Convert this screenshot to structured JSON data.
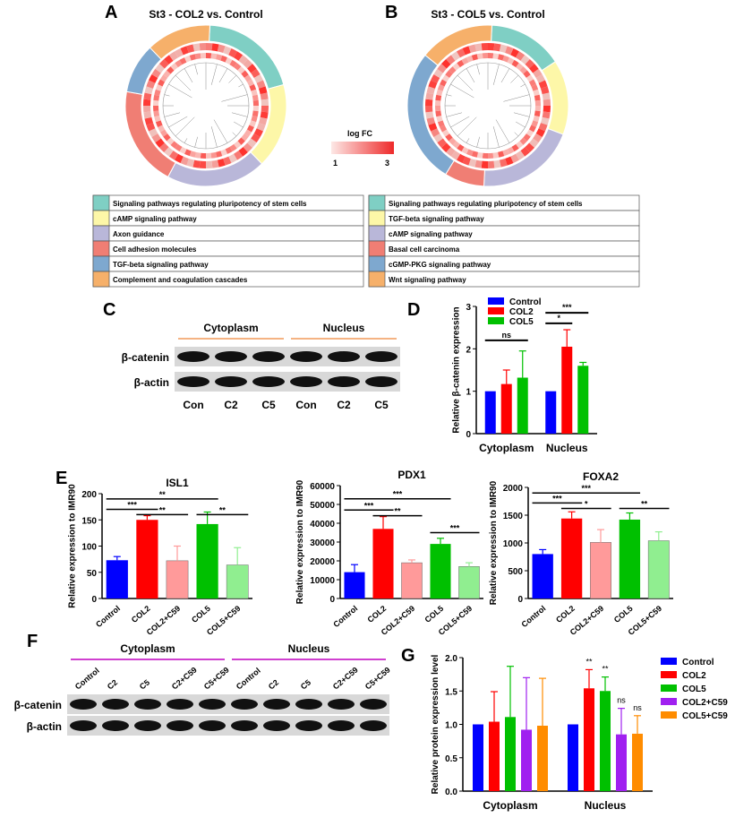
{
  "panels": {
    "a": "A",
    "b": "B",
    "c": "C",
    "d": "D",
    "e": "E",
    "f": "F",
    "g": "G"
  },
  "circos": [
    {
      "title": "St3 - COL2 vs. Control",
      "legend": [
        {
          "label": "Signaling pathways regulating pluripotency of stem cells",
          "color": "#7fcfc4"
        },
        {
          "label": "cAMP signaling pathway",
          "color": "#fdf7a8"
        },
        {
          "label": "Axon guidance",
          "color": "#b9b7d9"
        },
        {
          "label": "Cell adhesion molecules",
          "color": "#f07e74"
        },
        {
          "label": "TGF-beta signaling pathway",
          "color": "#7ea8cf"
        },
        {
          "label": "Complement and coagulation cascades",
          "color": "#f6b06a"
        }
      ],
      "ring_fractions": [
        0.2,
        0.17,
        0.2,
        0.2,
        0.1,
        0.13
      ]
    },
    {
      "title": "St3 - COL5 vs. Control",
      "legend": [
        {
          "label": "Signaling pathways regulating pluripotency of stem cells",
          "color": "#7fcfc4"
        },
        {
          "label": "TGF-beta signaling pathway",
          "color": "#fdf7a8"
        },
        {
          "label": "cAMP signaling pathway",
          "color": "#b9b7d9"
        },
        {
          "label": "Basal cell carcinoma",
          "color": "#f07e74"
        },
        {
          "label": "cGMP-PKG signaling pathway",
          "color": "#7ea8cf"
        },
        {
          "label": "Wnt signaling pathway",
          "color": "#f6b06a"
        }
      ],
      "ring_fractions": [
        0.15,
        0.15,
        0.2,
        0.08,
        0.27,
        0.15
      ]
    }
  ],
  "logfc": {
    "title": "log FC",
    "min": "1",
    "max": "3"
  },
  "blot_c": {
    "groups": [
      "Cytoplasm",
      "Nucleus"
    ],
    "rows": [
      "β-catenin",
      "β-actin"
    ],
    "lanes": [
      "Con",
      "C2",
      "C5",
      "Con",
      "C2",
      "C5"
    ]
  },
  "blot_f": {
    "groups": [
      "Cytoplasm",
      "Nucleus"
    ],
    "rows": [
      "β-catenin",
      "β-actin"
    ],
    "lanes": [
      "Control",
      "C2",
      "C5",
      "C2+C59",
      "C5+C59",
      "Control",
      "C2",
      "C5",
      "C2+C59",
      "C5+C59"
    ]
  },
  "colors": {
    "Control": "#0000ff",
    "COL2": "#ff0000",
    "COL5": "#00c000",
    "COL2+C59": "#a020f0",
    "COL5+C59": "#ff8c00",
    "COL2+C59_e": "#ff9a9a",
    "COL5+C59_e": "#90ee90"
  },
  "chart_data": [
    {
      "id": "D",
      "type": "bar",
      "categories": [
        "Cytoplasm",
        "Nucleus"
      ],
      "ylabel": "Relative β-catenin expression",
      "ylim": [
        0,
        3
      ],
      "yticks": [
        "0",
        "1",
        "2",
        "3"
      ],
      "legend": "top-left",
      "series": [
        {
          "name": "Control",
          "values": [
            1,
            1
          ],
          "err": [
            0,
            0
          ]
        },
        {
          "name": "COL2",
          "values": [
            1.17,
            2.05
          ],
          "err": [
            0.33,
            0.4
          ]
        },
        {
          "name": "COL5",
          "values": [
            1.32,
            1.6
          ],
          "err": [
            0.63,
            0.08
          ]
        }
      ],
      "annotations": [
        {
          "text": "ns",
          "group": 0,
          "from": 0,
          "to": 2,
          "y": 2.2
        },
        {
          "text": "*",
          "group": 1,
          "from": 0,
          "to": 1,
          "y": 2.6
        },
        {
          "text": "***",
          "group": 1,
          "from": 0,
          "to": 2,
          "y": 2.85
        }
      ]
    },
    {
      "id": "E1",
      "type": "bar",
      "title": "ISL1",
      "ylabel": "Relative expression to IMR90",
      "ylim": [
        0,
        200
      ],
      "yticks": [
        "0",
        "50",
        "100",
        "150",
        "200"
      ],
      "categories": [
        "Control",
        "COL2",
        "COL2+C59",
        "COL5",
        "COL5+C59"
      ],
      "values": [
        73,
        150,
        72,
        142,
        64
      ],
      "err": [
        7,
        8,
        28,
        23,
        33
      ],
      "annotations": [
        {
          "text": "***",
          "from": 0,
          "to": 1,
          "y": 170
        },
        {
          "text": "**",
          "from": 1,
          "to": 2,
          "y": 160
        },
        {
          "text": "**",
          "from": 0,
          "to": 3,
          "y": 190
        },
        {
          "text": "**",
          "from": 3,
          "to": 4,
          "y": 160
        }
      ]
    },
    {
      "id": "E2",
      "type": "bar",
      "title": "PDX1",
      "ylabel": "Relative expression to IMR90",
      "ylim": [
        0,
        60000
      ],
      "yticks": [
        "0",
        "10000",
        "20000",
        "30000",
        "40000",
        "50000",
        "60000"
      ],
      "categories": [
        "Control",
        "COL2",
        "COL2+C59",
        "COL5",
        "COL5+C59"
      ],
      "values": [
        14000,
        37000,
        19000,
        29000,
        17000
      ],
      "err": [
        4000,
        6500,
        1500,
        3000,
        2000
      ],
      "annotations": [
        {
          "text": "***",
          "from": 0,
          "to": 1,
          "y": 47000
        },
        {
          "text": "**",
          "from": 1,
          "to": 2,
          "y": 44000
        },
        {
          "text": "***",
          "from": 0,
          "to": 3,
          "y": 53000
        },
        {
          "text": "***",
          "from": 3,
          "to": 4,
          "y": 35000
        }
      ]
    },
    {
      "id": "E3",
      "type": "bar",
      "title": "FOXA2",
      "ylabel": "Relative expression to IMR90",
      "ylim": [
        0,
        2000
      ],
      "yticks": [
        "0",
        "500",
        "1000",
        "1500",
        "2000"
      ],
      "categories": [
        "Control",
        "COL2",
        "COL2+C59",
        "COL5",
        "COL5+C59"
      ],
      "values": [
        800,
        1440,
        1010,
        1420,
        1040
      ],
      "err": [
        80,
        120,
        230,
        120,
        160
      ],
      "annotations": [
        {
          "text": "***",
          "from": 0,
          "to": 1,
          "y": 1720
        },
        {
          "text": "*",
          "from": 1,
          "to": 2,
          "y": 1620
        },
        {
          "text": "***",
          "from": 0,
          "to": 3,
          "y": 1900
        },
        {
          "text": "**",
          "from": 3,
          "to": 4,
          "y": 1620
        }
      ]
    },
    {
      "id": "G",
      "type": "bar",
      "categories": [
        "Cytoplasm",
        "Nucleus"
      ],
      "ylabel": "Relative protein expression level",
      "ylim": [
        0,
        2
      ],
      "yticks": [
        "0.0",
        "0.5",
        "1.0",
        "1.5",
        "2.0"
      ],
      "legend": "right",
      "series": [
        {
          "name": "Control",
          "values": [
            1,
            1
          ],
          "err": [
            0,
            0
          ]
        },
        {
          "name": "COL2",
          "values": [
            1.04,
            1.54
          ],
          "err": [
            0.45,
            0.28
          ]
        },
        {
          "name": "COL5",
          "values": [
            1.11,
            1.5
          ],
          "err": [
            0.76,
            0.21
          ]
        },
        {
          "name": "COL2+C59",
          "values": [
            0.92,
            0.85
          ],
          "err": [
            0.78,
            0.39
          ]
        },
        {
          "name": "COL5+C59",
          "values": [
            0.98,
            0.86
          ],
          "err": [
            0.71,
            0.27
          ]
        }
      ],
      "marks": [
        {
          "text": "**",
          "group": 1,
          "series": 1
        },
        {
          "text": "**",
          "group": 1,
          "series": 2
        },
        {
          "text": "ns",
          "group": 1,
          "series": 3
        },
        {
          "text": "ns",
          "group": 1,
          "series": 4
        }
      ]
    }
  ]
}
